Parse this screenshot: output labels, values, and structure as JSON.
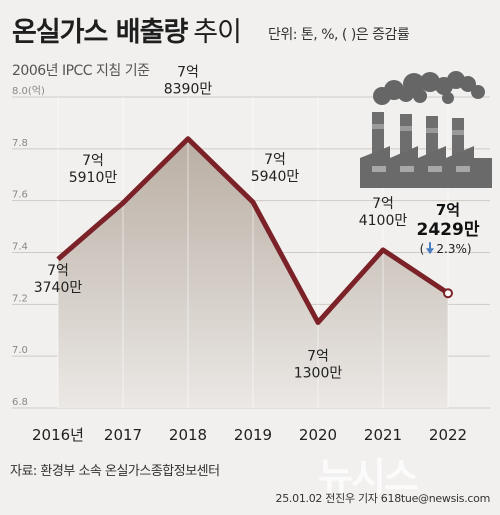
{
  "title": {
    "main": "온실가스 배출량",
    "sub": "추이"
  },
  "unit": "단위: 톤, %, ( )은 증감률",
  "subtitle": "2006년 IPCC 지침 기준",
  "source": "자료: 환경부 소속 온실가스종합정보센터",
  "credit": "25.01.02 전진우 기자 618tue@newsis.com",
  "watermark": "뉴시스",
  "icon": "factory-icon",
  "colors": {
    "line": "#7b2228",
    "area_top": "#b9aea3",
    "area_bottom": "#ebe8e5",
    "down_arrow": "#4a7fc1"
  },
  "chart_data": {
    "type": "area",
    "x": [
      "2016년",
      "2017",
      "2018",
      "2019",
      "2020",
      "2021",
      "2022"
    ],
    "values": [
      7.374,
      7.591,
      7.839,
      7.594,
      7.13,
      7.41,
      7.2429
    ],
    "ylim": [
      6.8,
      8.0
    ],
    "yticks": [
      "6.8",
      "7.0",
      "7.2",
      "7.4",
      "7.6",
      "7.8",
      "8.0(억)"
    ],
    "grid": true,
    "labels": [
      {
        "line1": "7억",
        "line2": "3740만"
      },
      {
        "line1": "7억",
        "line2": "5910만"
      },
      {
        "line1": "7억",
        "line2": "8390만"
      },
      {
        "line1": "7억",
        "line2": "5940만"
      },
      {
        "line1": "7억",
        "line2": "1300만"
      },
      {
        "line1": "7억",
        "line2": "4100만"
      },
      {
        "line1": "7억",
        "line2": "2429만",
        "change": "2.3%)",
        "change_open": "("
      }
    ]
  }
}
